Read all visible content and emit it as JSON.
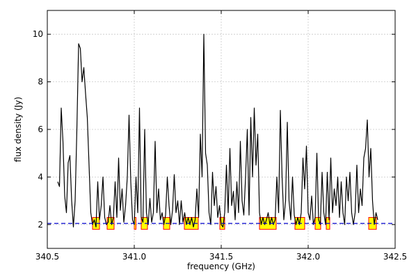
{
  "chart_data": {
    "type": "line",
    "xlabel": "frequency (GHz)",
    "ylabel": "flux density (Jy)",
    "xlim": [
      340.5,
      342.5
    ],
    "ylim": [
      1,
      11
    ],
    "xticks": [
      340.5,
      {
        "value": 341.0,
        "label": "341.0"
      },
      341.5,
      {
        "value": 342.0,
        "label": "342.0"
      },
      342.5
    ],
    "yticks": [
      2,
      4,
      6,
      8,
      10
    ],
    "grid": true,
    "color": "#000000",
    "threshold": 2.05,
    "threshold_color": "#0000cc",
    "box_color": "#ffff00",
    "box_edge": "#ff0000",
    "box_ylim": [
      1.8,
      2.3
    ],
    "ranges": [
      [
        340.76,
        340.8
      ],
      [
        340.844,
        340.884
      ],
      [
        341.0,
        341.01
      ],
      [
        341.04,
        341.076
      ],
      [
        341.168,
        341.204
      ],
      [
        341.288,
        341.368
      ],
      [
        341.492,
        341.52
      ],
      [
        341.72,
        341.816
      ],
      [
        341.924,
        341.98
      ],
      [
        342.04,
        342.072
      ],
      [
        342.104,
        342.124
      ],
      [
        342.348,
        342.392
      ]
    ],
    "x": [
      340.56,
      340.57,
      340.58,
      340.59,
      340.6,
      340.61,
      340.62,
      340.63,
      340.64,
      340.65,
      340.66,
      340.67,
      340.68,
      340.69,
      340.7,
      340.71,
      340.72,
      340.73,
      340.74,
      340.75,
      340.76,
      340.77,
      340.78,
      340.79,
      340.8,
      340.81,
      340.82,
      340.83,
      340.84,
      340.85,
      340.86,
      340.87,
      340.88,
      340.89,
      340.9,
      340.91,
      340.92,
      340.93,
      340.94,
      340.95,
      340.96,
      340.97,
      340.98,
      340.99,
      341.0,
      341.01,
      341.02,
      341.03,
      341.04,
      341.05,
      341.06,
      341.07,
      341.08,
      341.09,
      341.1,
      341.11,
      341.12,
      341.13,
      341.14,
      341.15,
      341.16,
      341.17,
      341.18,
      341.19,
      341.2,
      341.21,
      341.22,
      341.23,
      341.24,
      341.25,
      341.26,
      341.27,
      341.28,
      341.29,
      341.3,
      341.31,
      341.32,
      341.33,
      341.34,
      341.35,
      341.36,
      341.37,
      341.38,
      341.39,
      341.4,
      341.41,
      341.42,
      341.43,
      341.44,
      341.45,
      341.46,
      341.47,
      341.48,
      341.49,
      341.5,
      341.51,
      341.52,
      341.53,
      341.54,
      341.55,
      341.56,
      341.57,
      341.58,
      341.59,
      341.6,
      341.61,
      341.62,
      341.63,
      341.64,
      341.65,
      341.66,
      341.67,
      341.68,
      341.69,
      341.7,
      341.71,
      341.72,
      341.73,
      341.74,
      341.75,
      341.76,
      341.77,
      341.78,
      341.79,
      341.8,
      341.81,
      341.82,
      341.83,
      341.84,
      341.85,
      341.86,
      341.87,
      341.88,
      341.89,
      341.9,
      341.91,
      341.92,
      341.93,
      341.94,
      341.95,
      341.96,
      341.97,
      341.98,
      341.99,
      342.0,
      342.01,
      342.02,
      342.03,
      342.04,
      342.05,
      342.06,
      342.07,
      342.08,
      342.09,
      342.1,
      342.11,
      342.12,
      342.13,
      342.14,
      342.15,
      342.16,
      342.17,
      342.18,
      342.19,
      342.2,
      342.21,
      342.22,
      342.23,
      342.24,
      342.25,
      342.26,
      342.27,
      342.28,
      342.29,
      342.3,
      342.31,
      342.32,
      342.33,
      342.34,
      342.35,
      342.36,
      342.37,
      342.38,
      342.39,
      342.4
    ],
    "values": [
      3.8,
      3.6,
      6.9,
      5.5,
      3.2,
      2.5,
      4.6,
      4.9,
      3.0,
      1.9,
      3.0,
      6.0,
      9.6,
      9.4,
      8.0,
      8.6,
      7.5,
      6.5,
      4.5,
      2.5,
      2.0,
      2.2,
      1.9,
      3.8,
      2.2,
      2.8,
      4.0,
      2.3,
      2.0,
      2.1,
      2.8,
      2.0,
      2.3,
      3.8,
      2.3,
      4.8,
      2.6,
      3.5,
      2.1,
      2.8,
      4.0,
      6.6,
      3.8,
      2.2,
      2.0,
      4.0,
      2.5,
      6.9,
      2.3,
      2.1,
      6.0,
      2.5,
      2.0,
      3.1,
      2.1,
      2.5,
      5.5,
      2.5,
      3.5,
      2.2,
      2.5,
      2.0,
      2.4,
      4.0,
      2.8,
      2.0,
      2.6,
      4.1,
      2.5,
      3.0,
      2.0,
      3.0,
      2.1,
      2.5,
      2.0,
      2.3,
      2.0,
      2.3,
      1.9,
      2.2,
      3.5,
      2.3,
      5.8,
      4.0,
      10.0,
      5.0,
      4.5,
      2.5,
      2.0,
      4.2,
      2.8,
      3.6,
      2.3,
      2.8,
      2.0,
      1.9,
      2.5,
      4.5,
      2.5,
      5.2,
      2.8,
      3.4,
      2.2,
      3.8,
      2.5,
      5.5,
      3.0,
      2.4,
      4.0,
      6.0,
      2.4,
      6.5,
      4.0,
      6.9,
      4.5,
      5.8,
      2.5,
      2.0,
      2.3,
      2.0,
      2.2,
      2.5,
      2.0,
      2.3,
      2.0,
      2.2,
      4.0,
      2.5,
      6.8,
      4.0,
      2.2,
      3.0,
      6.3,
      3.0,
      2.2,
      4.0,
      2.4,
      2.0,
      2.3,
      2.0,
      2.5,
      4.8,
      3.5,
      5.3,
      2.5,
      2.2,
      3.2,
      2.0,
      2.3,
      5.0,
      2.2,
      2.0,
      4.2,
      2.5,
      2.0,
      4.2,
      2.2,
      4.8,
      2.5,
      3.5,
      2.8,
      4.0,
      2.3,
      3.8,
      2.5,
      2.0,
      4.0,
      3.0,
      4.2,
      2.5,
      2.0,
      2.5,
      4.5,
      2.5,
      3.5,
      2.8,
      4.8,
      5.2,
      6.4,
      4.0,
      5.2,
      3.0,
      2.0,
      2.5,
      2.2
    ]
  }
}
